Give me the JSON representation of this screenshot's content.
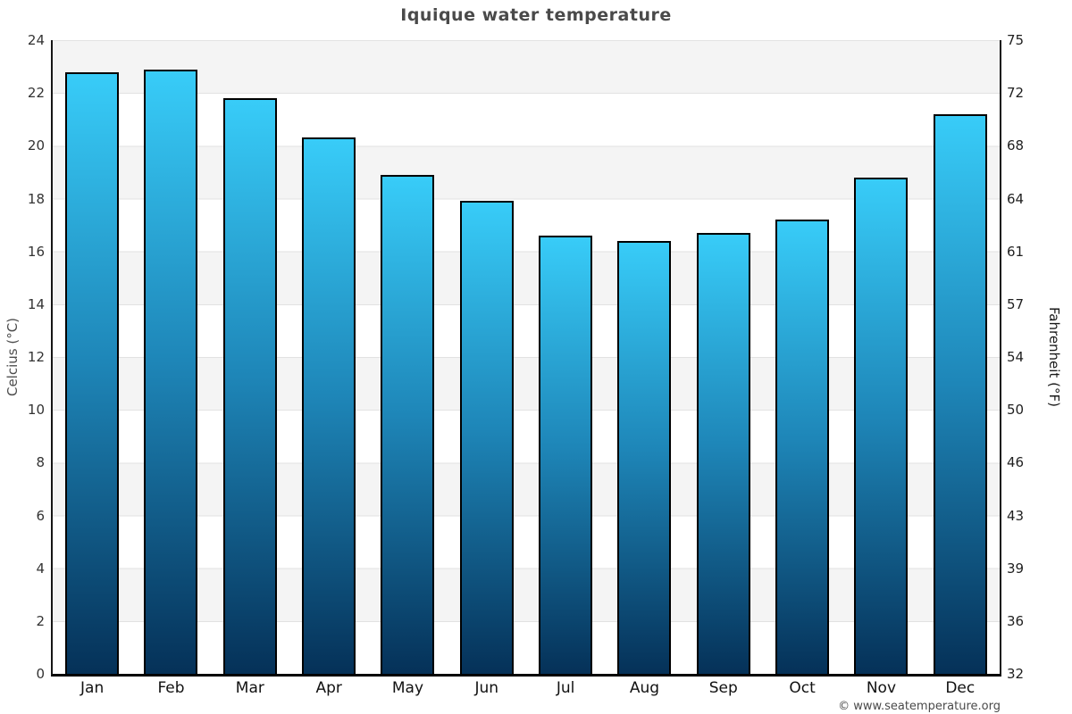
{
  "title": "Iquique water temperature",
  "footer": "© www.seatemperature.org",
  "chart_data": {
    "type": "bar",
    "title": "Iquique water temperature",
    "categories": [
      "Jan",
      "Feb",
      "Mar",
      "Apr",
      "May",
      "Jun",
      "Jul",
      "Aug",
      "Sep",
      "Oct",
      "Nov",
      "Dec"
    ],
    "values": [
      22.8,
      22.9,
      21.8,
      20.3,
      18.9,
      17.9,
      16.6,
      16.4,
      16.7,
      17.2,
      18.8,
      21.2
    ],
    "value_unit": "°C",
    "ylabel_left": "Celcius (°C)",
    "ylabel_right": "Fahrenheit (°F)",
    "yticks_left": [
      24,
      22,
      20,
      18,
      16,
      14,
      12,
      10,
      8,
      6,
      4,
      2,
      0
    ],
    "yticks_right": [
      75,
      72,
      68,
      64,
      61,
      57,
      54,
      50,
      46,
      43,
      39,
      36,
      32
    ],
    "ylim": [
      0,
      24
    ],
    "grid": "horizontal gridlines with alternating gray/white bands every 2°C",
    "legend": "none",
    "colors": {
      "bar_gradient_top": "#38CCF8",
      "bar_gradient_mid": "#1E86B8",
      "bar_gradient_bottom": "#053158",
      "bar_border": "#000000",
      "band_gray": "#f4f4f4",
      "gridline": "#e2e2e2",
      "title_text": "#4a4a4a"
    }
  }
}
